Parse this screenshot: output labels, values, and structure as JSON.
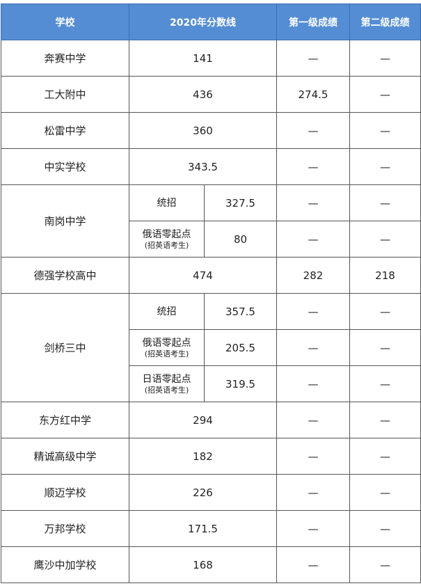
{
  "headers": [
    "学校",
    "2020年分数线",
    "第一级成绩",
    "第二级成绩"
  ],
  "rows": [
    {
      "school": "奔赛中学",
      "scores": [
        {
          "score": "141"
        }
      ],
      "level1": "—",
      "level2": "—"
    },
    {
      "school": "工大附中",
      "scores": [
        {
          "score": "436"
        }
      ],
      "level1": "274.5",
      "level2": "—"
    },
    {
      "school": "松雷中学",
      "scores": [
        {
          "score": "360"
        }
      ],
      "level1": "—",
      "level2": "—"
    },
    {
      "school": "中实学校",
      "scores": [
        {
          "score": "343.5"
        }
      ],
      "level1": "—",
      "level2": "—"
    },
    {
      "school": "南岗中学",
      "scores": [
        {
          "category": "统招",
          "score": "327.5",
          "level1": "—",
          "level2": "—"
        },
        {
          "category": "俄语零起点",
          "note": "(招英语考生)",
          "score": "80",
          "level1": "—",
          "level2": "—"
        }
      ]
    },
    {
      "school": "德强学校高中",
      "scores": [
        {
          "score": "474"
        }
      ],
      "level1": "282",
      "level2": "218"
    },
    {
      "school": "剑桥三中",
      "scores": [
        {
          "category": "统招",
          "score": "357.5",
          "level1": "—",
          "level2": "—"
        },
        {
          "category": "俄语零起点",
          "note": "(招英语考生)",
          "score": "205.5",
          "level1": "—",
          "level2": "—"
        },
        {
          "category": "日语零起点",
          "note": "(招英语考生)",
          "score": "319.5",
          "level1": "—",
          "level2": "—"
        }
      ]
    },
    {
      "school": "东方红中学",
      "scores": [
        {
          "score": "294"
        }
      ],
      "level1": "—",
      "level2": "—"
    },
    {
      "school": "精诚高级中学",
      "scores": [
        {
          "score": "182"
        }
      ],
      "level1": "—",
      "level2": "—"
    },
    {
      "school": "顺迈学校",
      "scores": [
        {
          "score": "226"
        }
      ],
      "level1": "—",
      "level2": "—"
    },
    {
      "school": "万邦学校",
      "scores": [
        {
          "score": "171.5"
        }
      ],
      "level1": "—",
      "level2": "—"
    },
    {
      "school": "鹰沙中加学校",
      "scores": [
        {
          "score": "168"
        }
      ],
      "level1": "—",
      "level2": "—"
    }
  ],
  "colors": {
    "header_bg": "#548dd4",
    "header_text": "#ffffff"
  }
}
